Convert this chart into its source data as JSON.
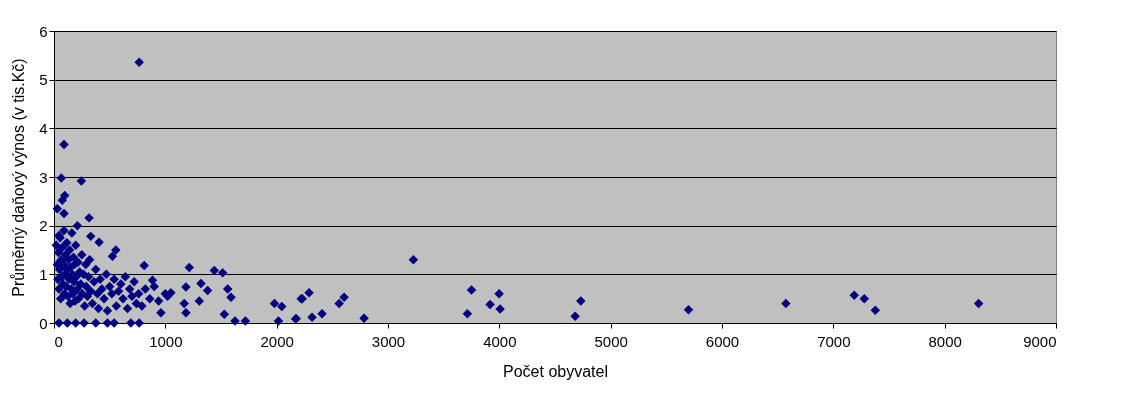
{
  "chart_data": {
    "type": "scatter",
    "xlabel": "Počet obyvatel",
    "ylabel": "Průměrný daňový výnos (v tis.Kč)",
    "marker": "diamond",
    "grid": "y",
    "xlim": [
      0,
      9000
    ],
    "xticks": [
      0,
      1000,
      2000,
      3000,
      4000,
      5000,
      6000,
      7000,
      8000,
      9000
    ],
    "ylim": [
      0,
      6
    ],
    "yticks": [
      0,
      1,
      2,
      3,
      4,
      5,
      6
    ],
    "x": [
      765,
      90,
      66,
      246,
      96,
      75,
      30,
      315,
      90,
      210,
      45,
      330,
      405,
      555,
      525,
      810,
      1215,
      1440,
      1515,
      885,
      1320,
      1380,
      1185,
      1560,
      1590,
      1050,
      1305,
      1170,
      1185,
      960,
      1530,
      1626,
      1719,
      1980,
      2046,
      2016,
      2175,
      2220,
      3228,
      3750,
      3713,
      3998,
      3917,
      4007,
      4732,
      4681,
      2291,
      2230,
      2171,
      2318,
      2408,
      2606,
      2561,
      2785,
      5699,
      6574,
      7188,
      7278,
      7377,
      8305,
      20,
      30,
      35,
      40,
      45,
      50,
      55,
      60,
      65,
      70,
      75,
      80,
      85,
      90,
      95,
      100,
      105,
      110,
      115,
      120,
      125,
      130,
      135,
      140,
      145,
      150,
      155,
      160,
      165,
      170,
      175,
      180,
      185,
      190,
      195,
      200,
      210,
      215,
      220,
      230,
      240,
      250,
      255,
      265,
      275,
      285,
      290,
      300,
      310,
      320,
      330,
      345,
      360,
      375,
      390,
      400,
      415,
      430,
      450,
      470,
      480,
      500,
      520,
      540,
      560,
      580,
      600,
      620,
      640,
      660,
      680,
      700,
      720,
      740,
      760,
      790,
      820,
      860,
      900,
      940,
      1000,
      1020,
      45,
      120,
      195,
      270,
      375,
      480,
      540,
      690,
      765
    ],
    "series": [
      {
        "color": "#000080",
        "values": [
          5.36,
          3.67,
          2.98,
          2.92,
          2.62,
          2.52,
          2.35,
          2.16,
          2.25,
          2.0,
          1.8,
          1.78,
          1.66,
          1.5,
          1.37,
          1.18,
          1.14,
          1.08,
          1.03,
          0.88,
          0.81,
          0.67,
          0.74,
          0.7,
          0.53,
          0.62,
          0.45,
          0.4,
          0.21,
          0.21,
          0.18,
          0.04,
          0.04,
          0.4,
          0.34,
          0.04,
          0.09,
          0.5,
          1.3,
          0.68,
          0.19,
          0.6,
          0.38,
          0.29,
          0.45,
          0.14,
          0.62,
          0.5,
          0.08,
          0.12,
          0.19,
          0.53,
          0.4,
          0.1,
          0.27,
          0.4,
          0.57,
          0.5,
          0.26,
          0.4,
          1.6,
          1.2,
          0.9,
          1.45,
          0.7,
          1.1,
          1.75,
          0.5,
          1.3,
          0.95,
          1.55,
          0.8,
          1.2,
          1.9,
          0.6,
          1.0,
          1.4,
          0.75,
          1.65,
          1.1,
          0.55,
          1.3,
          0.9,
          1.5,
          0.4,
          1.15,
          0.7,
          1.85,
          1.0,
          0.6,
          1.35,
          0.85,
          1.2,
          0.45,
          1.6,
          0.95,
          0.7,
          1.25,
          0.5,
          1.05,
          0.8,
          1.4,
          0.6,
          1.0,
          0.35,
          1.2,
          0.75,
          0.55,
          0.95,
          1.3,
          0.65,
          0.4,
          0.85,
          1.1,
          0.6,
          0.3,
          0.9,
          0.7,
          0.5,
          1.0,
          0.25,
          0.75,
          0.6,
          0.9,
          0.35,
          0.65,
          0.8,
          0.5,
          0.95,
          0.3,
          0.7,
          0.55,
          0.85,
          0.4,
          0.6,
          0.35,
          0.7,
          0.5,
          0.75,
          0.45,
          0.6,
          0.55,
          0,
          0,
          0,
          0,
          0,
          0,
          0,
          0,
          0
        ]
      }
    ]
  }
}
